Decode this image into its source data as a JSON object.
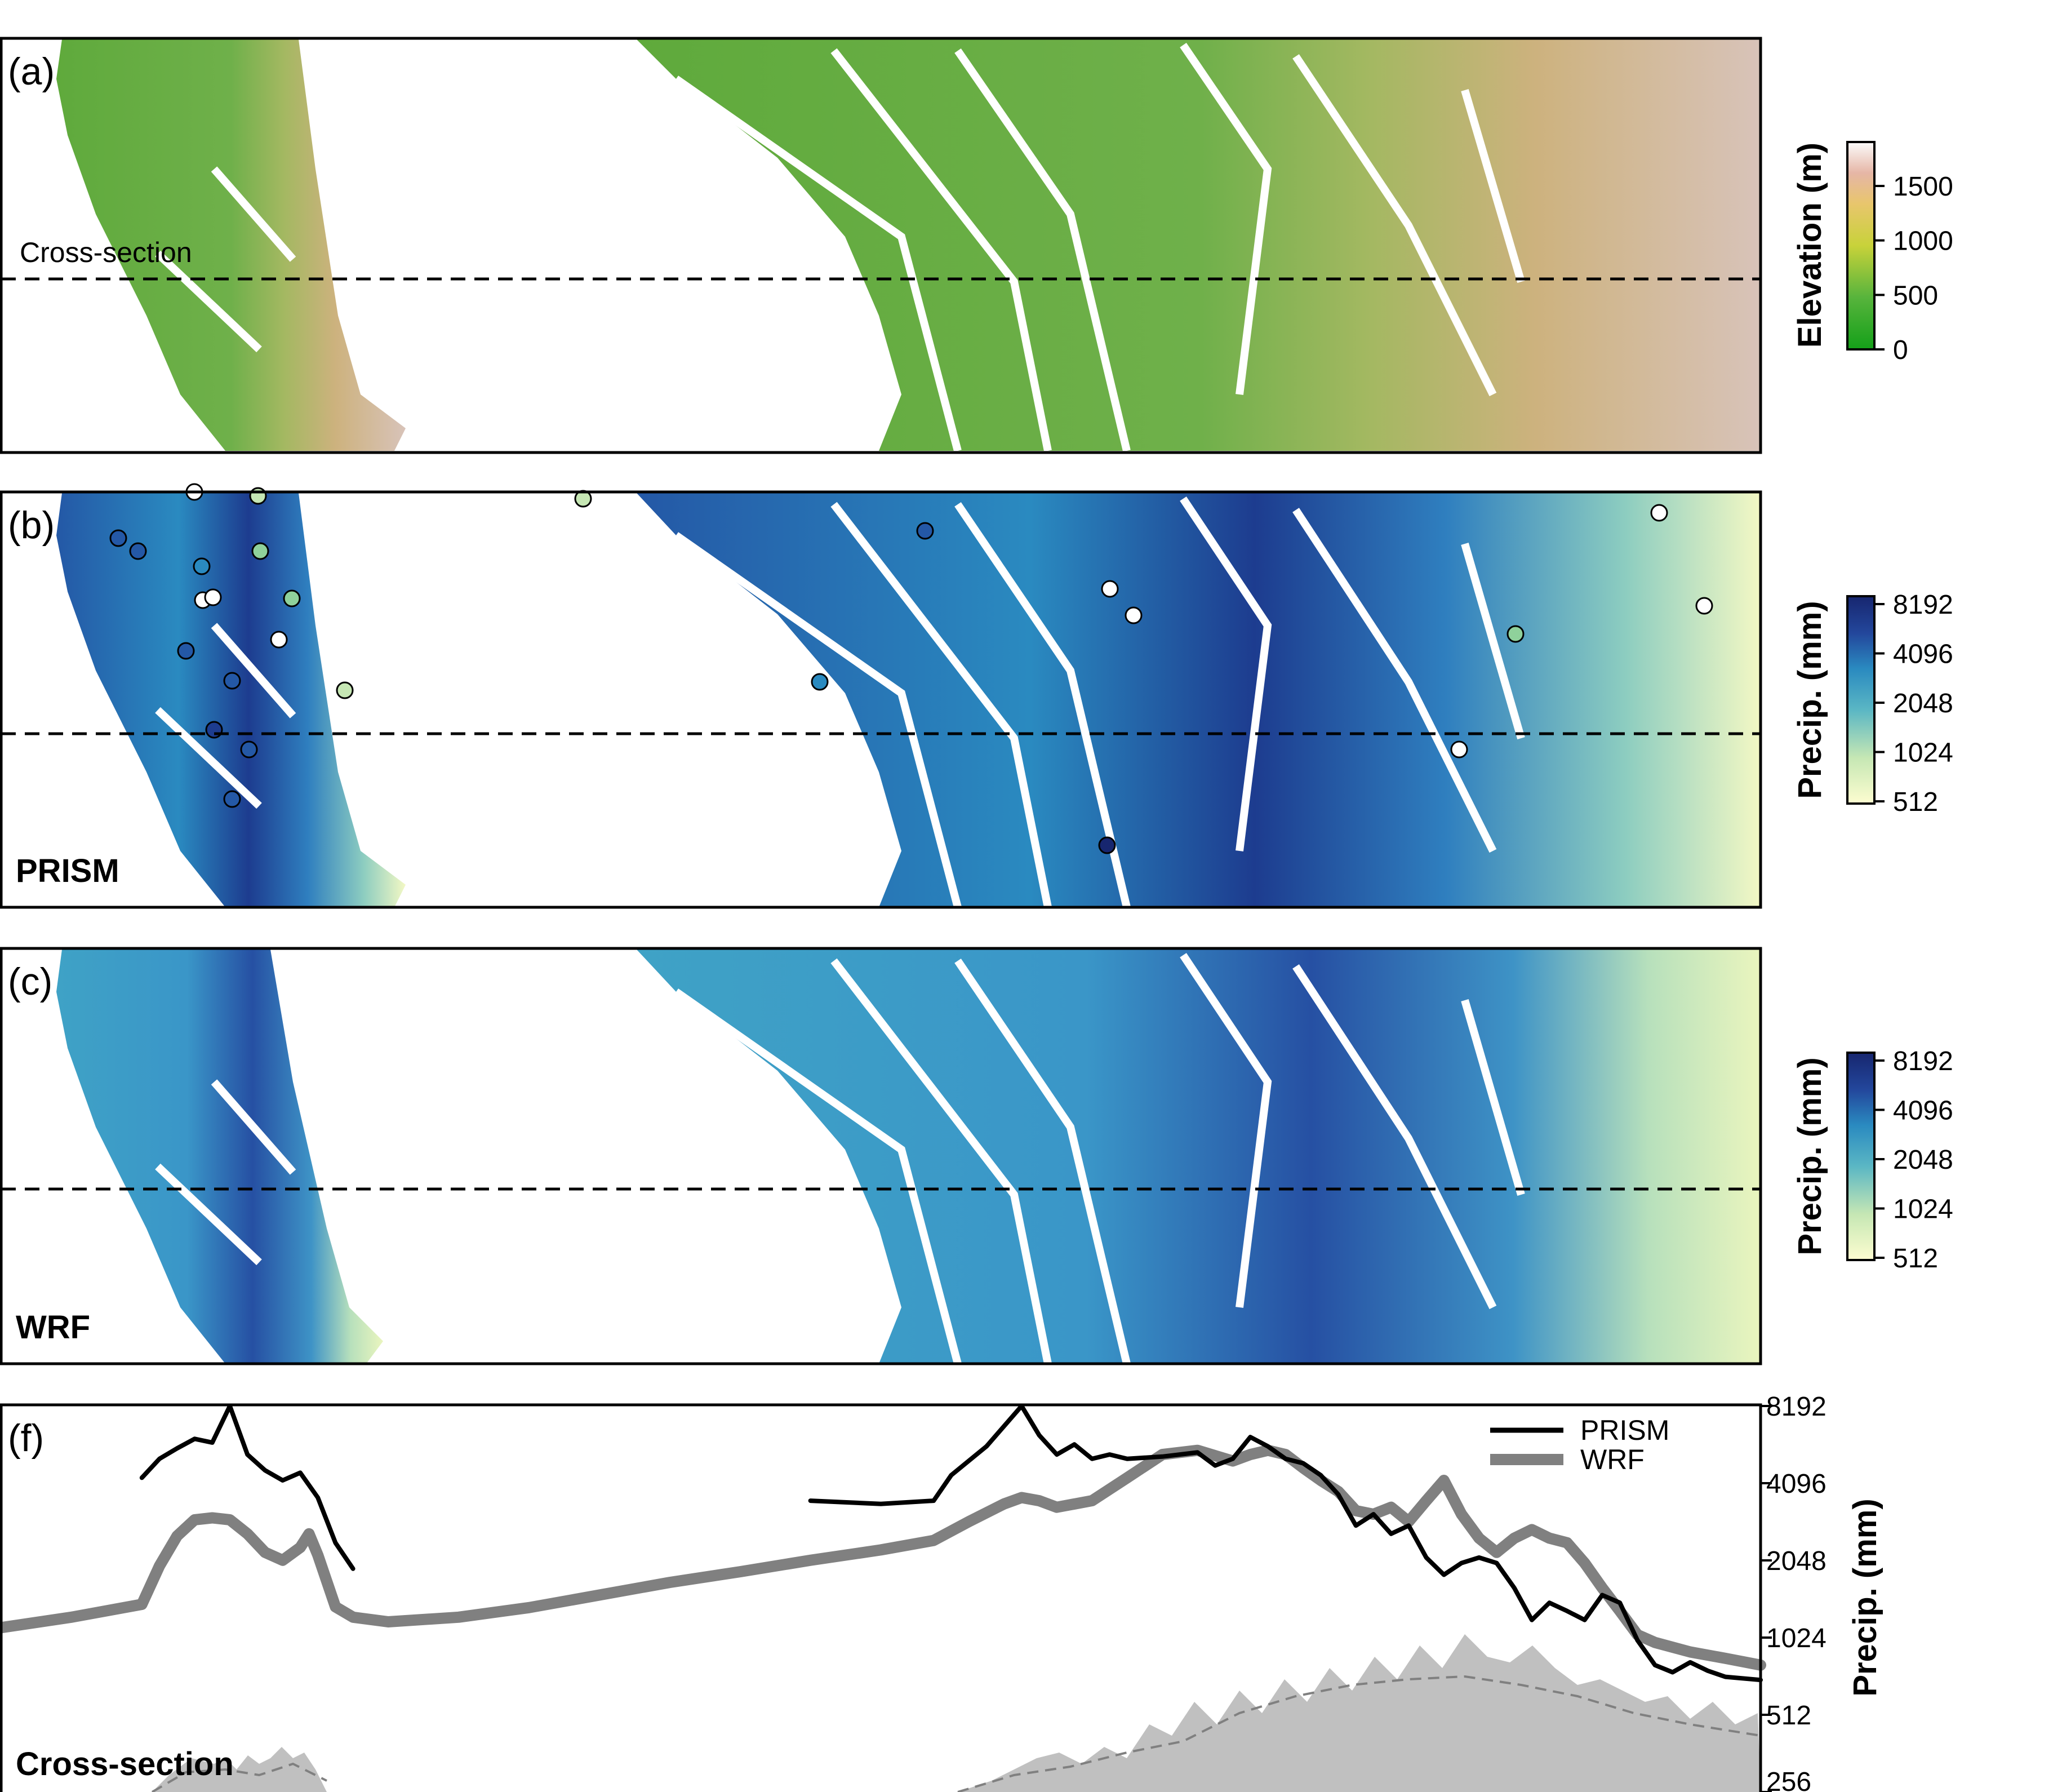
{
  "panels": [
    {
      "letter": "(a)",
      "caption": "",
      "annotation": "Cross-section",
      "colorbar": {
        "title": "Elevation (m)",
        "ticks": [
          "1500",
          "1000",
          "500",
          "0"
        ],
        "colors": [
          "#fbfbfb",
          "#e6b6a6",
          "#e8c66c",
          "#c8d23a",
          "#57b43c",
          "#14a019"
        ]
      }
    },
    {
      "letter": "(b)",
      "caption": "PRISM",
      "colorbar": {
        "title": "Precip. (mm)",
        "ticks": [
          "8192",
          "4096",
          "2048",
          "1024",
          "512"
        ],
        "colors": [
          "#17266f",
          "#23479c",
          "#2a8ac0",
          "#5bb7c4",
          "#c6e7b4",
          "#fdfdd0"
        ]
      }
    },
    {
      "letter": "(c)",
      "caption": "WRF",
      "colorbar": {
        "title": "Precip. (mm)",
        "ticks": [
          "8192",
          "4096",
          "2048",
          "1024",
          "512"
        ],
        "colors": [
          "#17266f",
          "#23479c",
          "#2a8ac0",
          "#5bb7c4",
          "#c6e7b4",
          "#fdfdd0"
        ]
      }
    }
  ],
  "cross_section_panel": {
    "letter": "(f)",
    "caption": "Cross-section",
    "ylabel": "Precip. (mm)",
    "yticks": [
      "8192",
      "4096",
      "2048",
      "1024",
      "512",
      "256"
    ],
    "legend": [
      "PRISM",
      "WRF"
    ],
    "colors": {
      "prism": "#000000",
      "wrf": "#808080",
      "terrain": "#c0c0c0"
    }
  },
  "chart_data": {
    "type": "line",
    "ylabel": "Precip. (mm)",
    "yscale": "log2",
    "ylim": [
      256,
      8192
    ],
    "legend_position": "top-right",
    "series": [
      {
        "name": "PRISM",
        "segments": [
          [
            [
              0.08,
              4300
            ],
            [
              0.09,
              5100
            ],
            [
              0.1,
              5600
            ],
            [
              0.11,
              6100
            ],
            [
              0.12,
              5900
            ],
            [
              0.13,
              8192
            ],
            [
              0.14,
              5300
            ],
            [
              0.15,
              4600
            ],
            [
              0.16,
              4200
            ],
            [
              0.17,
              4500
            ],
            [
              0.18,
              3600
            ],
            [
              0.19,
              2400
            ],
            [
              0.2,
              1900
            ]
          ],
          [
            [
              0.46,
              3500
            ],
            [
              0.5,
              3400
            ],
            [
              0.53,
              3500
            ],
            [
              0.54,
              4400
            ],
            [
              0.56,
              5700
            ],
            [
              0.58,
              8192
            ],
            [
              0.59,
              6300
            ],
            [
              0.6,
              5300
            ],
            [
              0.61,
              5800
            ],
            [
              0.62,
              5100
            ],
            [
              0.63,
              5300
            ],
            [
              0.64,
              5100
            ],
            [
              0.66,
              5200
            ],
            [
              0.68,
              5400
            ],
            [
              0.69,
              4800
            ],
            [
              0.7,
              5100
            ],
            [
              0.71,
              6200
            ],
            [
              0.72,
              5700
            ],
            [
              0.73,
              5100
            ],
            [
              0.74,
              4900
            ],
            [
              0.75,
              4400
            ],
            [
              0.76,
              3700
            ],
            [
              0.77,
              2800
            ],
            [
              0.78,
              3100
            ],
            [
              0.79,
              2600
            ],
            [
              0.8,
              2800
            ],
            [
              0.81,
              2100
            ],
            [
              0.82,
              1800
            ],
            [
              0.83,
              2000
            ],
            [
              0.84,
              2100
            ],
            [
              0.85,
              2000
            ],
            [
              0.86,
              1600
            ],
            [
              0.87,
              1200
            ],
            [
              0.88,
              1400
            ],
            [
              0.89,
              1300
            ],
            [
              0.9,
              1200
            ],
            [
              0.91,
              1500
            ],
            [
              0.92,
              1400
            ],
            [
              0.93,
              1000
            ],
            [
              0.94,
              800
            ],
            [
              0.95,
              750
            ],
            [
              0.96,
              820
            ],
            [
              0.97,
              760
            ],
            [
              0.98,
              720
            ],
            [
              1.0,
              700
            ]
          ]
        ]
      },
      {
        "name": "WRF",
        "segments": [
          [
            [
              0.0,
              1120
            ],
            [
              0.04,
              1230
            ],
            [
              0.08,
              1380
            ],
            [
              0.09,
              1950
            ],
            [
              0.1,
              2550
            ],
            [
              0.11,
              2950
            ],
            [
              0.12,
              3000
            ],
            [
              0.13,
              2950
            ],
            [
              0.14,
              2600
            ],
            [
              0.15,
              2200
            ],
            [
              0.16,
              2050
            ],
            [
              0.17,
              2300
            ],
            [
              0.175,
              2600
            ],
            [
              0.18,
              2150
            ],
            [
              0.19,
              1350
            ],
            [
              0.2,
              1230
            ],
            [
              0.22,
              1180
            ],
            [
              0.26,
              1230
            ],
            [
              0.3,
              1340
            ],
            [
              0.34,
              1500
            ],
            [
              0.38,
              1680
            ],
            [
              0.42,
              1850
            ],
            [
              0.46,
              2050
            ],
            [
              0.5,
              2250
            ],
            [
              0.53,
              2450
            ],
            [
              0.55,
              2900
            ],
            [
              0.57,
              3400
            ],
            [
              0.58,
              3600
            ],
            [
              0.59,
              3500
            ],
            [
              0.6,
              3300
            ],
            [
              0.62,
              3500
            ],
            [
              0.64,
              4300
            ],
            [
              0.66,
              5300
            ],
            [
              0.68,
              5500
            ],
            [
              0.7,
              5000
            ],
            [
              0.71,
              5300
            ],
            [
              0.72,
              5500
            ],
            [
              0.73,
              5300
            ],
            [
              0.74,
              4700
            ],
            [
              0.75,
              4200
            ],
            [
              0.76,
              3800
            ],
            [
              0.77,
              3200
            ],
            [
              0.78,
              3100
            ],
            [
              0.79,
              3300
            ],
            [
              0.8,
              2900
            ],
            [
              0.81,
              3500
            ],
            [
              0.82,
              4200
            ],
            [
              0.83,
              3100
            ],
            [
              0.84,
              2500
            ],
            [
              0.85,
              2200
            ],
            [
              0.86,
              2500
            ],
            [
              0.87,
              2700
            ],
            [
              0.88,
              2500
            ],
            [
              0.89,
              2400
            ],
            [
              0.9,
              2000
            ],
            [
              0.91,
              1600
            ],
            [
              0.92,
              1300
            ],
            [
              0.93,
              1050
            ],
            [
              0.94,
              980
            ],
            [
              0.96,
              900
            ],
            [
              0.98,
              850
            ],
            [
              1.0,
              800
            ]
          ]
        ]
      }
    ]
  }
}
